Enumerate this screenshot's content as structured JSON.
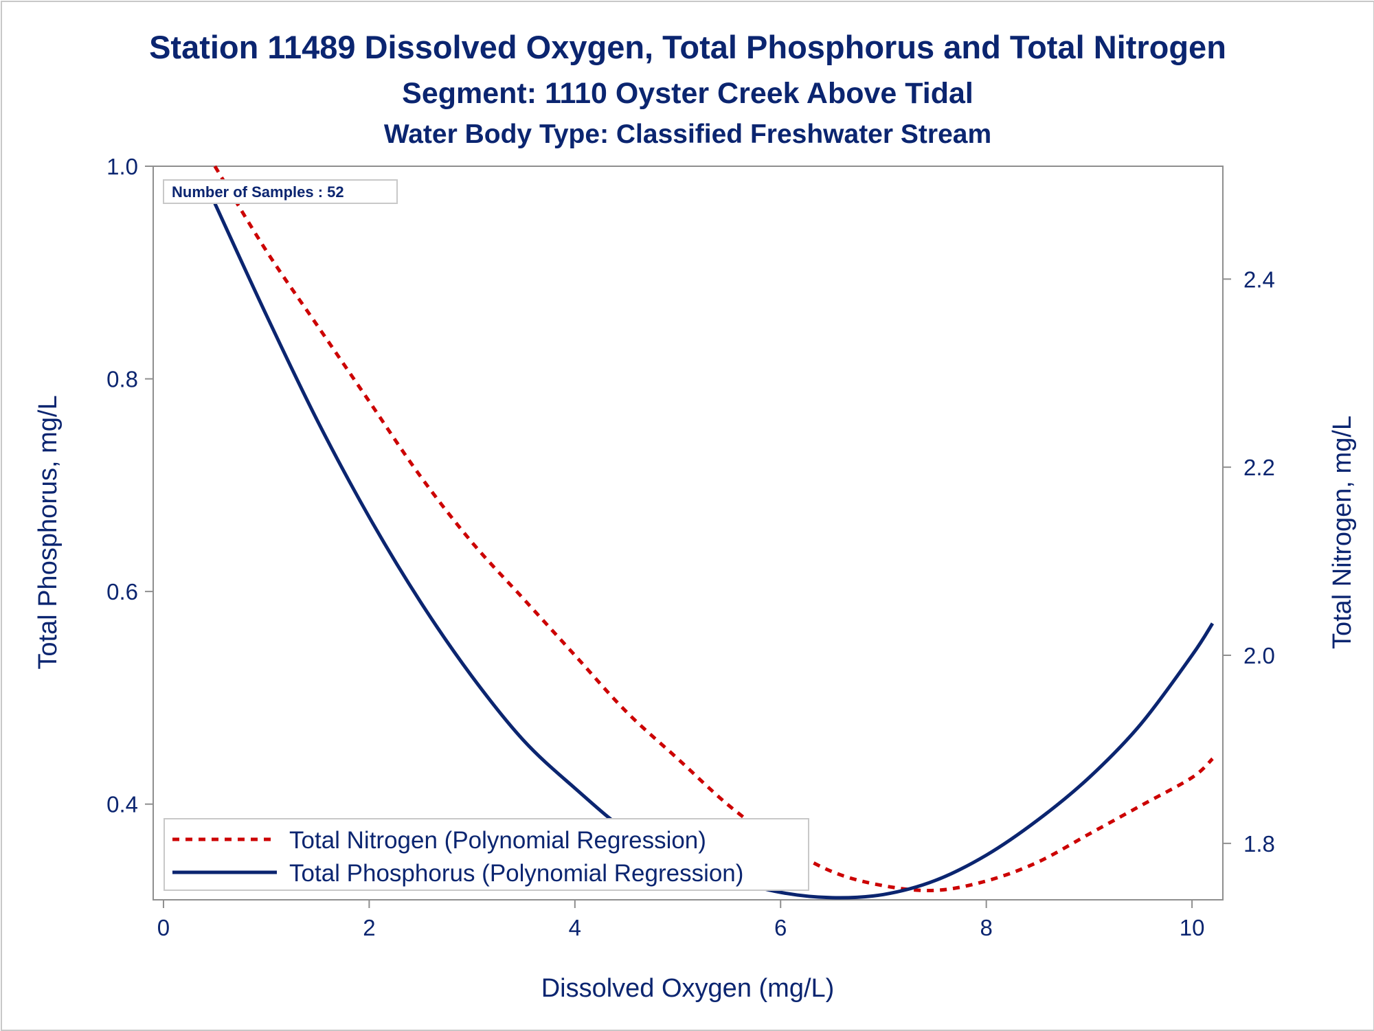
{
  "chart_data": {
    "type": "line",
    "title": "Station 11489  Dissolved Oxygen, Total Phosphorus and Total Nitrogen",
    "subtitle": "Segment: 1110  Oyster Creek Above Tidal",
    "subtitle2": "Water Body Type: Classified Freshwater Stream",
    "annotation": "Number of Samples : 52",
    "xlabel": "Dissolved Oxygen (mg/L)",
    "ylabel": "Total Phosphorus, mg/L",
    "y2label": "Total Nitrogen, mg/L",
    "xlim": [
      -0.1,
      10.3
    ],
    "ylim": [
      0.31,
      1.0
    ],
    "y2lim": [
      1.74,
      2.52
    ],
    "x_ticks": [
      0,
      2,
      4,
      6,
      8,
      10
    ],
    "x_tick_labels": [
      "0",
      "2",
      "4",
      "6",
      "8",
      "10"
    ],
    "y_ticks": [
      0.4,
      0.6,
      0.8,
      1.0
    ],
    "y_tick_labels": [
      "0.4",
      "0.6",
      "0.8",
      "1.0"
    ],
    "y2_ticks": [
      1.8,
      2.0,
      2.2,
      2.4
    ],
    "y2_tick_labels": [
      "1.8",
      "2.0",
      "2.2",
      "2.4"
    ],
    "grid": false,
    "legend_position": "bottom-left",
    "series": [
      {
        "name": "Total Nitrogen (Polynomial Regression)",
        "axis": "right",
        "style": "dashed",
        "color": "#cc0000",
        "x": [
          0.5,
          1.0,
          1.5,
          2.0,
          2.5,
          3.0,
          3.5,
          4.0,
          4.5,
          5.0,
          5.5,
          6.0,
          6.5,
          7.0,
          7.5,
          8.0,
          8.5,
          9.0,
          9.5,
          10.0,
          10.2
        ],
        "y": [
          2.52,
          2.43,
          2.35,
          2.27,
          2.19,
          2.12,
          2.06,
          2.0,
          1.94,
          1.89,
          1.84,
          1.8,
          1.77,
          1.755,
          1.75,
          1.76,
          1.78,
          1.81,
          1.84,
          1.87,
          1.89
        ]
      },
      {
        "name": "Total Phosphorus (Polynomial Regression)",
        "axis": "left",
        "style": "solid",
        "color": "#0b2570",
        "x": [
          0.5,
          1.0,
          1.5,
          2.0,
          2.5,
          3.0,
          3.5,
          4.0,
          4.5,
          5.0,
          5.5,
          6.0,
          6.5,
          7.0,
          7.5,
          8.0,
          8.5,
          9.0,
          9.5,
          10.0,
          10.2
        ],
        "y": [
          0.965,
          0.86,
          0.76,
          0.67,
          0.59,
          0.52,
          0.46,
          0.415,
          0.375,
          0.35,
          0.33,
          0.317,
          0.312,
          0.315,
          0.328,
          0.352,
          0.385,
          0.425,
          0.475,
          0.54,
          0.57
        ]
      }
    ]
  }
}
